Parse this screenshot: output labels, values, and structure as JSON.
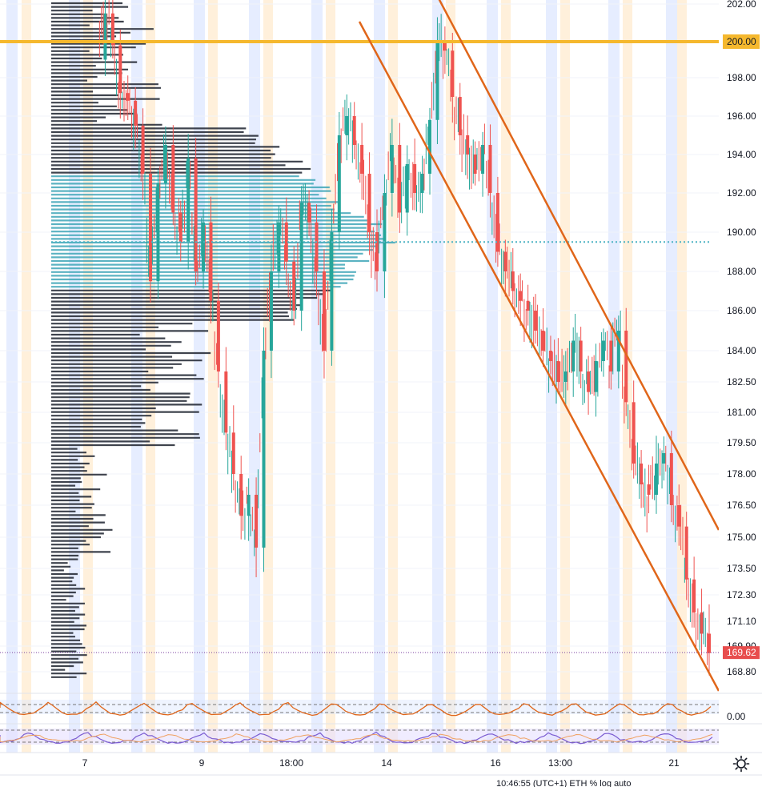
{
  "chart_data": {
    "type": "line",
    "title": "",
    "xlabel": "",
    "ylabel": "",
    "ylim": [
      168,
      202.5
    ],
    "price_axis": {
      "ticks": [
        "202.00",
        "200.00",
        "198.00",
        "196.00",
        "194.00",
        "192.00",
        "190.00",
        "188.00",
        "186.00",
        "184.00",
        "182.50",
        "181.00",
        "179.50",
        "178.00",
        "176.50",
        "175.00",
        "173.50",
        "172.30",
        "171.10",
        "169.90",
        "168.80"
      ],
      "tick_values": [
        202.0,
        200.0,
        198.0,
        196.0,
        194.0,
        192.0,
        190.0,
        188.0,
        186.0,
        184.0,
        182.5,
        181.0,
        179.5,
        178.0,
        176.5,
        175.0,
        173.5,
        172.3,
        171.1,
        169.9,
        168.8
      ]
    },
    "time_axis": {
      "ticks": [
        "7",
        "9",
        "18:00",
        "14",
        "16",
        "13:00",
        "21"
      ]
    },
    "horizontal_level": {
      "value": 200.0,
      "label": "200.00",
      "color": "#f5b82e"
    },
    "last_price": {
      "value": 169.62,
      "label": "169.62",
      "color": "#e84d4d"
    },
    "poc_level": {
      "value": 189.5,
      "color": "#4fb3c4"
    },
    "channel": {
      "color": "#e0661a",
      "upper": [
        {
          "x": "14",
          "y": 203.0
        },
        {
          "x": "21",
          "y": 175.2
        }
      ],
      "lower": [
        {
          "x": "14",
          "y": 199.5
        },
        {
          "x": "21",
          "y": 168.3
        }
      ]
    },
    "series": [
      {
        "values": [
          199.0,
          201.5,
          199.8,
          197.2,
          196.8,
          195.5,
          193.0,
          187.5,
          192.5,
          194.5,
          191.0,
          189.5,
          193.8,
          188.0,
          190.5,
          186.5,
          183.0,
          180.0,
          178.0,
          176.0,
          177.0,
          174.5,
          184.0,
          188.0,
          190.5,
          188.5,
          186.0,
          191.5,
          190.5,
          188.0,
          184.0,
          190.0,
          195.0,
          196.0,
          194.5,
          193.0,
          190.0,
          188.0,
          192.0,
          194.5,
          191.0,
          193.5,
          192.0,
          193.0,
          195.8,
          200.0,
          199.5,
          197.0,
          195.0,
          194.0,
          193.0,
          194.5,
          192.0,
          189.0,
          188.0,
          187.0,
          186.5,
          186.0,
          185.0,
          184.0,
          183.5,
          182.5,
          183.0,
          184.5,
          183.0,
          182.0,
          183.5,
          184.5,
          183.0,
          185.0,
          181.5,
          178.5,
          177.5,
          177.0,
          178.5,
          179.0,
          176.5,
          175.5,
          173.0,
          171.5,
          170.5,
          169.6
        ]
      }
    ],
    "bands": {
      "blue_color": "#dce6ff",
      "orange_color": "#ffe9cc"
    },
    "volume_profile": {
      "dark_color": "#2a2f3a",
      "teal_color": "#3fa6b8"
    },
    "indicators": [
      {
        "name": "",
        "color": "#e0661a",
        "label": "0.00"
      },
      {
        "name": "",
        "color": "#7b5cd1"
      }
    ]
  },
  "status_bar": {
    "text": "10:46:55 (UTC+1)   ETH   %   log   auto"
  },
  "icons": {
    "settings": "gear-icon"
  }
}
